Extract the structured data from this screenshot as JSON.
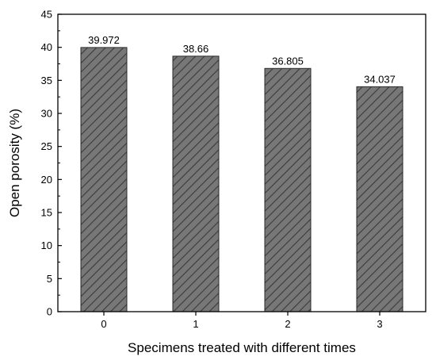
{
  "chart_data": {
    "type": "bar",
    "title": "",
    "xlabel": "Specimens treated with different times",
    "ylabel": "Open porosity (%)",
    "categories": [
      "0",
      "1",
      "2",
      "3"
    ],
    "values": [
      39.972,
      38.66,
      36.805,
      34.037
    ],
    "value_labels": [
      "39.972",
      "38.66",
      "36.805",
      "34.037"
    ],
    "ylim": [
      0,
      45
    ],
    "yticks": [
      0,
      5,
      10,
      15,
      20,
      25,
      30,
      35,
      40,
      45
    ],
    "grid": false,
    "legend": "none",
    "bar_fill": "#777777",
    "bar_hatch": "#3a3a3a",
    "bar_edge": "#2a2a2a"
  }
}
